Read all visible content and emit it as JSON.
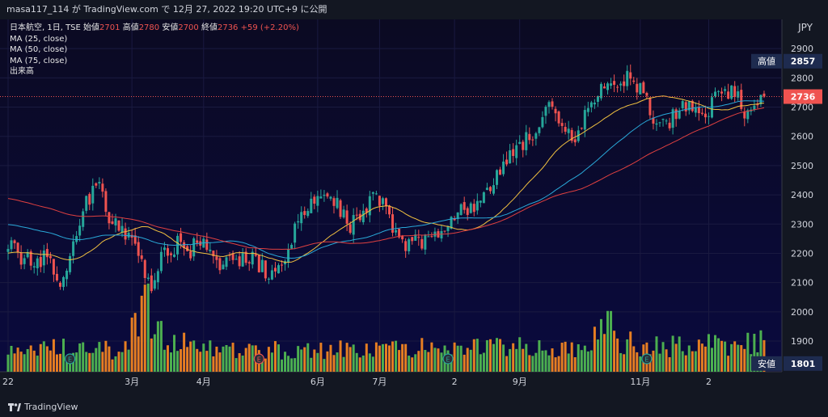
{
  "header": {
    "text": "masa117_114 が TradingView.com で 12月 27, 2022 19:20 UTC+9 に公開"
  },
  "legend": {
    "symbol": "日本航空, 1日, TSE",
    "open_label": "始値",
    "open": "2701",
    "high_label": "高値",
    "high": "2780",
    "low_label": "安値",
    "low": "2700",
    "close_label": "終値",
    "close": "2736",
    "change": "+59 (+2.20%)",
    "ma25": "MA (25, close)",
    "ma50": "MA (50, close)",
    "ma75": "MA (75, close)",
    "volume": "出来高"
  },
  "currency": "JPY",
  "badges": {
    "high_label": "高値",
    "high_value": "2857",
    "last_value": "2736",
    "low_label": "安値",
    "low_value": "1801"
  },
  "footer": {
    "brand": "TradingView"
  },
  "colors": {
    "background": "#0c0b2d",
    "up": "#26a69a",
    "down": "#ef5350",
    "vol_up": "#4caf50",
    "vol_down": "#e67e22",
    "ma25": "#f0c040",
    "ma50": "#29a8d8",
    "ma75": "#e04040",
    "last_line": "#ef5350",
    "label_bg": "#1e2b4f"
  },
  "chart_data": {
    "type": "candlestick",
    "y_ticks": [
      2900,
      2800,
      2700,
      2600,
      2500,
      2400,
      2300,
      2200,
      2100,
      2000,
      1900
    ],
    "ylim": [
      1795,
      3000
    ],
    "x_tick_labels": [
      "22",
      "3月",
      "4月",
      "6月",
      "7月",
      "2",
      "9月",
      "11月",
      "2"
    ],
    "x_tick_bars": [
      0,
      38,
      60,
      95,
      114,
      137,
      157,
      194,
      215
    ],
    "event_markers": [
      19,
      77,
      135,
      196
    ],
    "events": [
      "E",
      "E",
      "E",
      "E"
    ],
    "last_price": 2736,
    "high_price": 2857,
    "low_price": 1801,
    "seed": 21,
    "series_points": [
      [
        0,
        2245
      ],
      [
        4,
        2180
      ],
      [
        8,
        2170
      ],
      [
        12,
        2190
      ],
      [
        16,
        2110
      ],
      [
        20,
        2225
      ],
      [
        24,
        2380
      ],
      [
        28,
        2430
      ],
      [
        32,
        2300
      ],
      [
        36,
        2260
      ],
      [
        40,
        2210
      ],
      [
        44,
        2060
      ],
      [
        47,
        2200
      ],
      [
        52,
        2230
      ],
      [
        56,
        2200
      ],
      [
        58,
        2260
      ],
      [
        60,
        2220
      ],
      [
        65,
        2150
      ],
      [
        70,
        2180
      ],
      [
        75,
        2190
      ],
      [
        80,
        2120
      ],
      [
        85,
        2190
      ],
      [
        89,
        2300
      ],
      [
        93,
        2370
      ],
      [
        97,
        2390
      ],
      [
        101,
        2370
      ],
      [
        105,
        2300
      ],
      [
        108,
        2330
      ],
      [
        112,
        2400
      ],
      [
        116,
        2370
      ],
      [
        120,
        2230
      ],
      [
        125,
        2240
      ],
      [
        130,
        2250
      ],
      [
        134,
        2300
      ],
      [
        138,
        2350
      ],
      [
        142,
        2360
      ],
      [
        146,
        2380
      ],
      [
        150,
        2470
      ],
      [
        154,
        2540
      ],
      [
        158,
        2580
      ],
      [
        162,
        2630
      ],
      [
        166,
        2690
      ],
      [
        170,
        2620
      ],
      [
        174,
        2580
      ],
      [
        178,
        2700
      ],
      [
        182,
        2750
      ],
      [
        186,
        2790
      ],
      [
        190,
        2800
      ],
      [
        194,
        2760
      ],
      [
        198,
        2660
      ],
      [
        202,
        2640
      ],
      [
        206,
        2700
      ],
      [
        210,
        2710
      ],
      [
        214,
        2680
      ],
      [
        218,
        2750
      ],
      [
        222,
        2760
      ],
      [
        226,
        2690
      ],
      [
        229,
        2720
      ],
      [
        232,
        2736
      ]
    ],
    "volume_scale": [
      0,
      2000000
    ],
    "volume_points": [
      [
        0,
        240000
      ],
      [
        20,
        320000
      ],
      [
        35,
        260000
      ],
      [
        40,
        640000
      ],
      [
        42,
        1100000
      ],
      [
        44,
        520000
      ],
      [
        60,
        300000
      ],
      [
        100,
        280000
      ],
      [
        150,
        330000
      ],
      [
        175,
        280000
      ],
      [
        180,
        420000
      ],
      [
        185,
        900000
      ],
      [
        188,
        400000
      ],
      [
        200,
        320000
      ],
      [
        232,
        380000
      ]
    ]
  }
}
